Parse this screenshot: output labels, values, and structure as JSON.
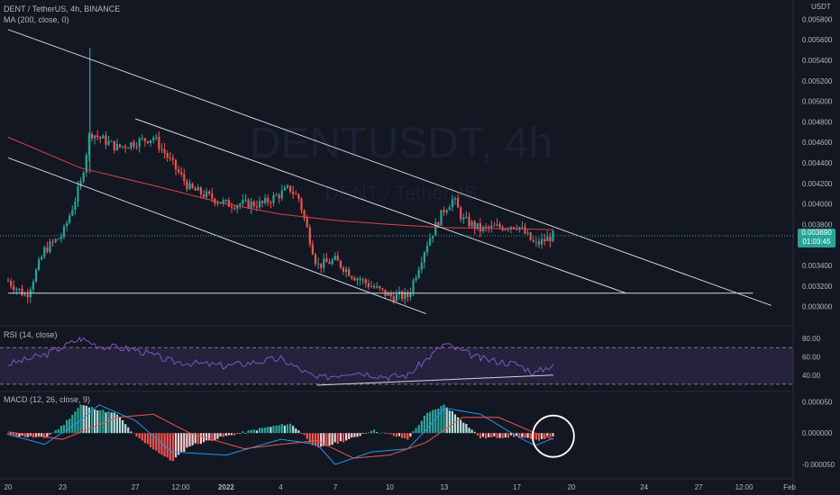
{
  "header": {
    "symbol_line": "DENT / TetherUS, 4h, BINANCE",
    "ma_line": "MA (200, close, 0)",
    "currency": "USDT",
    "watermark_symbol": "DENTUSDT, 4h",
    "watermark_desc": "DENT / TetherUS"
  },
  "price_tag": {
    "price": "0.003690",
    "countdown": "01:03:45"
  },
  "colors": {
    "up": "#26a69a",
    "down": "#ef5350",
    "ma": "#d84449",
    "rsi": "#7e57c2",
    "macd": "#2196f3",
    "signal": "#ef5350",
    "hist_up": "#26a69a",
    "hist_down": "#ef5350",
    "hist_up_fade": "#b2dfdb",
    "hist_down_fade": "#ffcdd2",
    "lines": "#d1d4dc"
  },
  "x_axis_ticks": [
    "20",
    "23",
    "27",
    "12:00",
    "2022",
    "4",
    "7",
    "10",
    "13",
    "17",
    "20",
    "24",
    "27",
    "12:00",
    "Feb"
  ],
  "chart_data": [
    {
      "type": "candlestick",
      "title": "DENT / TetherUS, 4h, BINANCE",
      "ylim": [
        0.0029,
        0.0059
      ],
      "y_ticks": [
        0.003,
        0.0032,
        0.0034,
        0.0036,
        0.0038,
        0.004,
        0.0042,
        0.0044,
        0.0046,
        0.0048,
        0.005,
        0.0052,
        0.0054,
        0.0056,
        0.0058
      ],
      "x_range": [
        "2021-12-20",
        "2022-02-01"
      ],
      "anchors": [
        {
          "t": "2021-12-20",
          "p": 0.00325
        },
        {
          "t": "2021-12-21",
          "p": 0.0031
        },
        {
          "t": "2021-12-22",
          "p": 0.00355
        },
        {
          "t": "2021-12-23",
          "p": 0.0037
        },
        {
          "t": "2021-12-24",
          "p": 0.0042
        },
        {
          "t": "2021-12-24T12:00",
          "p": 0.0047
        },
        {
          "t": "2021-12-26",
          "p": 0.00455
        },
        {
          "t": "2021-12-28",
          "p": 0.00465
        },
        {
          "t": "2021-12-30",
          "p": 0.00415
        },
        {
          "t": "2022-01-01",
          "p": 0.004
        },
        {
          "t": "2022-01-03",
          "p": 0.004
        },
        {
          "t": "2022-01-04T12:00",
          "p": 0.00415
        },
        {
          "t": "2022-01-05",
          "p": 0.00405
        },
        {
          "t": "2022-01-06",
          "p": 0.0034
        },
        {
          "t": "2022-01-07",
          "p": 0.00345
        },
        {
          "t": "2022-01-08",
          "p": 0.0033
        },
        {
          "t": "2022-01-09",
          "p": 0.0032
        },
        {
          "t": "2022-01-10",
          "p": 0.0031
        },
        {
          "t": "2022-01-11",
          "p": 0.0031
        },
        {
          "t": "2022-01-12",
          "p": 0.0036
        },
        {
          "t": "2022-01-13",
          "p": 0.00395
        },
        {
          "t": "2022-01-13T12:00",
          "p": 0.00405
        },
        {
          "t": "2022-01-14",
          "p": 0.00385
        },
        {
          "t": "2022-01-15",
          "p": 0.00375
        },
        {
          "t": "2022-01-17",
          "p": 0.0038
        },
        {
          "t": "2022-01-18",
          "p": 0.0036
        },
        {
          "t": "2022-01-19",
          "p": 0.00369
        }
      ],
      "ma200": [
        {
          "t": "2021-12-20",
          "p": 0.00465
        },
        {
          "t": "2021-12-24",
          "p": 0.00435
        },
        {
          "t": "2021-12-28",
          "p": 0.00418
        },
        {
          "t": "2022-01-01",
          "p": 0.004
        },
        {
          "t": "2022-01-04",
          "p": 0.0039
        },
        {
          "t": "2022-01-07",
          "p": 0.00384
        },
        {
          "t": "2022-01-10",
          "p": 0.0038
        },
        {
          "t": "2022-01-13",
          "p": 0.00377
        },
        {
          "t": "2022-01-16",
          "p": 0.00376
        },
        {
          "t": "2022-01-19",
          "p": 0.00375
        }
      ],
      "last_price": 0.00369,
      "trendlines": [
        {
          "from": {
            "t": "2021-12-20",
            "p": 0.0057
          },
          "to": {
            "t": "2022-01-31",
            "p": 0.00301
          }
        },
        {
          "from": {
            "t": "2021-12-27",
            "p": 0.00483
          },
          "to": {
            "t": "2022-01-23",
            "p": 0.00313
          }
        },
        {
          "from": {
            "t": "2021-12-20",
            "p": 0.00445
          },
          "to": {
            "t": "2022-01-12",
            "p": 0.00293
          }
        },
        {
          "from": {
            "t": "2021-12-20",
            "p": 0.00313
          },
          "to": {
            "t": "2022-01-30",
            "p": 0.00313
          }
        }
      ]
    },
    {
      "type": "line",
      "title": "RSI (14, close)",
      "ylim": [
        25,
        90
      ],
      "y_ticks": [
        40,
        60,
        80
      ],
      "band": [
        30,
        70
      ],
      "values": [
        {
          "t": "2021-12-20",
          "v": 52
        },
        {
          "t": "2021-12-22",
          "v": 62
        },
        {
          "t": "2021-12-24",
          "v": 80
        },
        {
          "t": "2021-12-25",
          "v": 72
        },
        {
          "t": "2021-12-27",
          "v": 68
        },
        {
          "t": "2021-12-29",
          "v": 55
        },
        {
          "t": "2022-01-01",
          "v": 50
        },
        {
          "t": "2022-01-04",
          "v": 58
        },
        {
          "t": "2022-01-06",
          "v": 36
        },
        {
          "t": "2022-01-08",
          "v": 44
        },
        {
          "t": "2022-01-10",
          "v": 38
        },
        {
          "t": "2022-01-11",
          "v": 40
        },
        {
          "t": "2022-01-13",
          "v": 74
        },
        {
          "t": "2022-01-15",
          "v": 58
        },
        {
          "t": "2022-01-17",
          "v": 52
        },
        {
          "t": "2022-01-18",
          "v": 42
        },
        {
          "t": "2022-01-19",
          "v": 52
        }
      ],
      "divergence_line": {
        "from": {
          "t": "2022-01-06",
          "v": 29
        },
        "to": {
          "t": "2022-01-19",
          "v": 40
        }
      }
    },
    {
      "type": "bar",
      "title": "MACD (12, 26, close, 9)",
      "ylim": [
        -7e-05,
        6.2e-05
      ],
      "y_ticks": [
        5e-05,
        0.0,
        -5e-05
      ],
      "y_tick_labels": [
        "0.000050",
        "0.000000",
        "-0.000050"
      ],
      "histogram": [
        {
          "t": "2021-12-20",
          "v": -3e-06
        },
        {
          "t": "2021-12-22",
          "v": -8e-06
        },
        {
          "t": "2021-12-23",
          "v": 1.2e-05
        },
        {
          "t": "2021-12-24",
          "v": 4.5e-05
        },
        {
          "t": "2021-12-26",
          "v": 3e-05
        },
        {
          "t": "2021-12-27",
          "v": -5e-06
        },
        {
          "t": "2021-12-29",
          "v": -4.5e-05
        },
        {
          "t": "2021-12-30",
          "v": -2e-05
        },
        {
          "t": "2022-01-01",
          "v": -5e-06
        },
        {
          "t": "2022-01-03",
          "v": 8e-06
        },
        {
          "t": "2022-01-04T12:00",
          "v": 1.5e-05
        },
        {
          "t": "2022-01-05",
          "v": 5e-06
        },
        {
          "t": "2022-01-06",
          "v": -2.5e-05
        },
        {
          "t": "2022-01-08",
          "v": -8e-06
        },
        {
          "t": "2022-01-09",
          "v": 5e-06
        },
        {
          "t": "2022-01-11",
          "v": -1e-05
        },
        {
          "t": "2022-01-12",
          "v": 3e-05
        },
        {
          "t": "2022-01-13",
          "v": 4.5e-05
        },
        {
          "t": "2022-01-14",
          "v": 2e-05
        },
        {
          "t": "2022-01-15",
          "v": -8e-06
        },
        {
          "t": "2022-01-17",
          "v": -5e-06
        },
        {
          "t": "2022-01-18",
          "v": -1.2e-05
        },
        {
          "t": "2022-01-19",
          "v": -4e-06
        }
      ],
      "macd": [
        {
          "t": "2021-12-20",
          "v": -2e-06
        },
        {
          "t": "2021-12-22",
          "v": -1.8e-05
        },
        {
          "t": "2021-12-24",
          "v": 2e-05
        },
        {
          "t": "2021-12-25",
          "v": 4.5e-05
        },
        {
          "t": "2021-12-27",
          "v": 2e-05
        },
        {
          "t": "2021-12-29",
          "v": -3e-05
        },
        {
          "t": "2022-01-01",
          "v": -3.5e-05
        },
        {
          "t": "2022-01-04",
          "v": -1e-05
        },
        {
          "t": "2022-01-06",
          "v": -1.8e-05
        },
        {
          "t": "2022-01-07",
          "v": -5e-05
        },
        {
          "t": "2022-01-09",
          "v": -3e-05
        },
        {
          "t": "2022-01-11",
          "v": -2.5e-05
        },
        {
          "t": "2022-01-12",
          "v": 5e-06
        },
        {
          "t": "2022-01-13",
          "v": 4e-05
        },
        {
          "t": "2022-01-15",
          "v": 3e-05
        },
        {
          "t": "2022-01-17",
          "v": -5e-06
        },
        {
          "t": "2022-01-18",
          "v": -2e-05
        },
        {
          "t": "2022-01-19",
          "v": -8e-06
        }
      ],
      "signal": [
        {
          "t": "2021-12-20",
          "v": 2e-06
        },
        {
          "t": "2021-12-23",
          "v": -1e-05
        },
        {
          "t": "2021-12-26",
          "v": 2.5e-05
        },
        {
          "t": "2021-12-28",
          "v": 3e-05
        },
        {
          "t": "2021-12-30",
          "v": 0.0
        },
        {
          "t": "2022-01-02",
          "v": -2.5e-05
        },
        {
          "t": "2022-01-04",
          "v": -1.8e-05
        },
        {
          "t": "2022-01-06",
          "v": -1.2e-05
        },
        {
          "t": "2022-01-08",
          "v": -4e-05
        },
        {
          "t": "2022-01-10",
          "v": -3.5e-05
        },
        {
          "t": "2022-01-12",
          "v": -1.5e-05
        },
        {
          "t": "2022-01-14",
          "v": 2.5e-05
        },
        {
          "t": "2022-01-16",
          "v": 2.5e-05
        },
        {
          "t": "2022-01-18",
          "v": 0.0
        },
        {
          "t": "2022-01-19",
          "v": -1e-05
        }
      ],
      "annotation": {
        "type": "circle",
        "t": "2022-01-19",
        "v": -5e-06
      }
    }
  ]
}
